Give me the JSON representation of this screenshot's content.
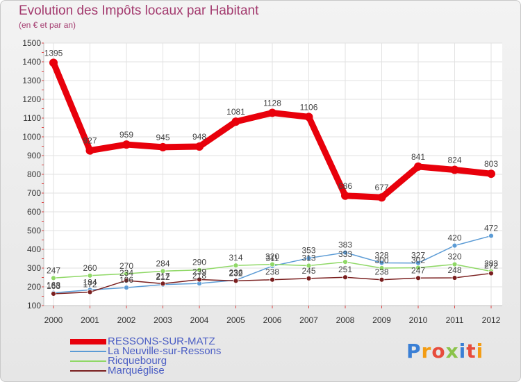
{
  "title": "Evolution des Impôts locaux par Habitant",
  "subtitle": "(en € et par an)",
  "logo": "Proxiti",
  "chart_data": {
    "type": "line",
    "title": "Evolution des Impôts locaux par Habitant",
    "subtitle": "(en € et par an)",
    "xlabel": "",
    "ylabel": "",
    "ylim": [
      100,
      1500
    ],
    "grid": true,
    "categories": [
      "2000",
      "2001",
      "2002",
      "2003",
      "2004",
      "2005",
      "2006",
      "2007",
      "2008",
      "2009",
      "2010",
      "2011",
      "2012"
    ],
    "yticks": [
      100,
      200,
      300,
      400,
      500,
      600,
      700,
      800,
      900,
      1000,
      1100,
      1200,
      1300,
      1400,
      1500
    ],
    "series": [
      {
        "name": "RESSONS-SUR-MATZ",
        "color": "#e8000b",
        "values": [
          1395,
          927,
          959,
          945,
          948,
          1081,
          1128,
          1106,
          686,
          677,
          841,
          824,
          803
        ]
      },
      {
        "name": "La Neuville-sur-Ressons",
        "color": "#5b9bd5",
        "values": [
          168,
          184,
          196,
          212,
          218,
          236,
          311,
          353,
          383,
          328,
          327,
          420,
          472
        ]
      },
      {
        "name": "Ricquebourg",
        "color": "#8fd866",
        "values": [
          247,
          260,
          270,
          284,
          290,
          314,
          320,
          313,
          333,
          300,
          302,
          320,
          283
        ]
      },
      {
        "name": "Marquéglise",
        "color": "#7a1f1f",
        "values": [
          163,
          172,
          234,
          217,
          239,
          232,
          238,
          245,
          251,
          238,
          247,
          248,
          272
        ]
      }
    ]
  }
}
